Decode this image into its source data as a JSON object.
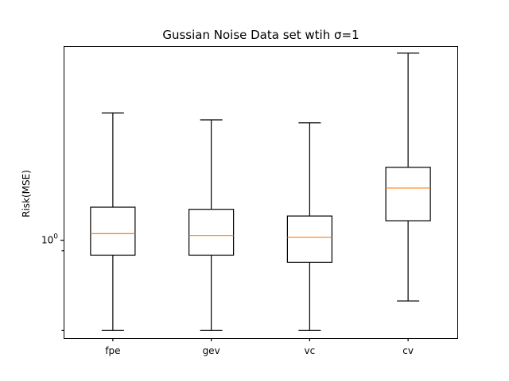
{
  "chart_data": {
    "type": "box",
    "title": "Gussian Noise Data set wtih σ=1",
    "xlabel": "",
    "ylabel": "Risk(MSE)",
    "yscale": "log",
    "ylim": [
      0.37,
      7.2
    ],
    "y_tick_labels": [
      {
        "value": 1,
        "base": "10",
        "exp": "0"
      }
    ],
    "y_minor_ticks": [
      0.4,
      0.9
    ],
    "categories": [
      "fpe",
      "gev",
      "vc",
      "cv"
    ],
    "boxes": [
      {
        "label": "fpe",
        "whisker_low": 0.4,
        "q1": 0.86,
        "median": 1.07,
        "q3": 1.4,
        "whisker_high": 3.65
      },
      {
        "label": "gev",
        "whisker_low": 0.4,
        "q1": 0.86,
        "median": 1.05,
        "q3": 1.37,
        "whisker_high": 3.4
      },
      {
        "label": "vc",
        "whisker_low": 0.4,
        "q1": 0.8,
        "median": 1.03,
        "q3": 1.28,
        "whisker_high": 3.3
      },
      {
        "label": "cv",
        "whisker_low": 0.54,
        "q1": 1.22,
        "median": 1.7,
        "q3": 2.1,
        "whisker_high": 6.7
      }
    ],
    "grid": false,
    "legend": "none",
    "colors": {
      "box": "#000000",
      "median": "#ff7f0e"
    }
  }
}
